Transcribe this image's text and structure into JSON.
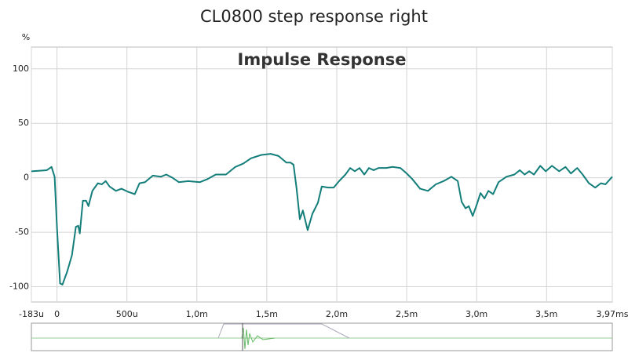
{
  "chart_data": {
    "type": "line",
    "title": "CL0800 step response right",
    "subtitle": "Impulse Response",
    "ylabel": "%",
    "x": [
      -0.183,
      -0.073,
      -0.039,
      -0.017,
      0,
      0.022,
      0.039,
      0.073,
      0.107,
      0.135,
      0.152,
      0.163,
      0.185,
      0.208,
      0.225,
      0.253,
      0.292,
      0.32,
      0.348,
      0.376,
      0.421,
      0.461,
      0.511,
      0.556,
      0.59,
      0.629,
      0.685,
      0.742,
      0.781,
      0.826,
      0.871,
      0.938,
      1.022,
      1.079,
      1.135,
      1.208,
      1.275,
      1.331,
      1.388,
      1.461,
      1.528,
      1.584,
      1.64,
      1.669,
      1.691,
      1.713,
      1.736,
      1.758,
      1.792,
      1.826,
      1.865,
      1.893,
      1.938,
      1.978,
      2.017,
      2.062,
      2.096,
      2.129,
      2.163,
      2.197,
      2.23,
      2.264,
      2.298,
      2.354,
      2.399,
      2.455,
      2.5,
      2.539,
      2.596,
      2.652,
      2.708,
      2.764,
      2.82,
      2.865,
      2.893,
      2.921,
      2.944,
      2.972,
      3.0,
      3.028,
      3.056,
      3.084,
      3.118,
      3.157,
      3.213,
      3.27,
      3.309,
      3.343,
      3.376,
      3.41,
      3.455,
      3.494,
      3.539,
      3.59,
      3.635,
      3.674,
      3.719,
      3.758,
      3.803,
      3.848,
      3.888,
      3.921,
      3.97
    ],
    "values": [
      6,
      7,
      10,
      1,
      -46,
      -97,
      -98,
      -86,
      -71,
      -45,
      -44,
      -51,
      -21,
      -21,
      -26,
      -12,
      -5,
      -6,
      -3,
      -8,
      -12,
      -10,
      -13,
      -15,
      -5,
      -4,
      2,
      1,
      3,
      0,
      -4,
      -3,
      -4,
      -1,
      3,
      3,
      10,
      13,
      18,
      21,
      22,
      20,
      14,
      14,
      12,
      -10,
      -38,
      -30,
      -48,
      -33,
      -23,
      -8,
      -9,
      -9,
      -3,
      3,
      9,
      6,
      9,
      3,
      9,
      7,
      9,
      9,
      10,
      9,
      4,
      -1,
      -10,
      -12,
      -6,
      -3,
      1,
      -3,
      -22,
      -28,
      -26,
      -35,
      -25,
      -14,
      -19,
      -12,
      -15,
      -4,
      1,
      3,
      7,
      3,
      6,
      3,
      11,
      6,
      11,
      6,
      10,
      4,
      9,
      3,
      -5,
      -9,
      -5,
      -6,
      1
    ],
    "color": "#137e7a",
    "xlim": [
      -0.183,
      3.97
    ],
    "xticks": [
      {
        "value": -0.183,
        "label": "-183u"
      },
      0,
      {
        "value": 0.5,
        "label": "500u"
      },
      {
        "value": 1.0,
        "label": "1,0m"
      },
      {
        "value": 1.5,
        "label": "1,5m"
      },
      {
        "value": 2.0,
        "label": "2,0m"
      },
      {
        "value": 2.5,
        "label": "2,5m"
      },
      {
        "value": 3.0,
        "label": "3,0m"
      },
      {
        "value": 3.5,
        "label": "3,5m"
      },
      {
        "value": 3.97,
        "label": "3,97ms"
      }
    ],
    "ylim": [
      -114,
      120
    ],
    "yticks": [
      -100,
      -50,
      0,
      50,
      100
    ],
    "grid": true
  }
}
